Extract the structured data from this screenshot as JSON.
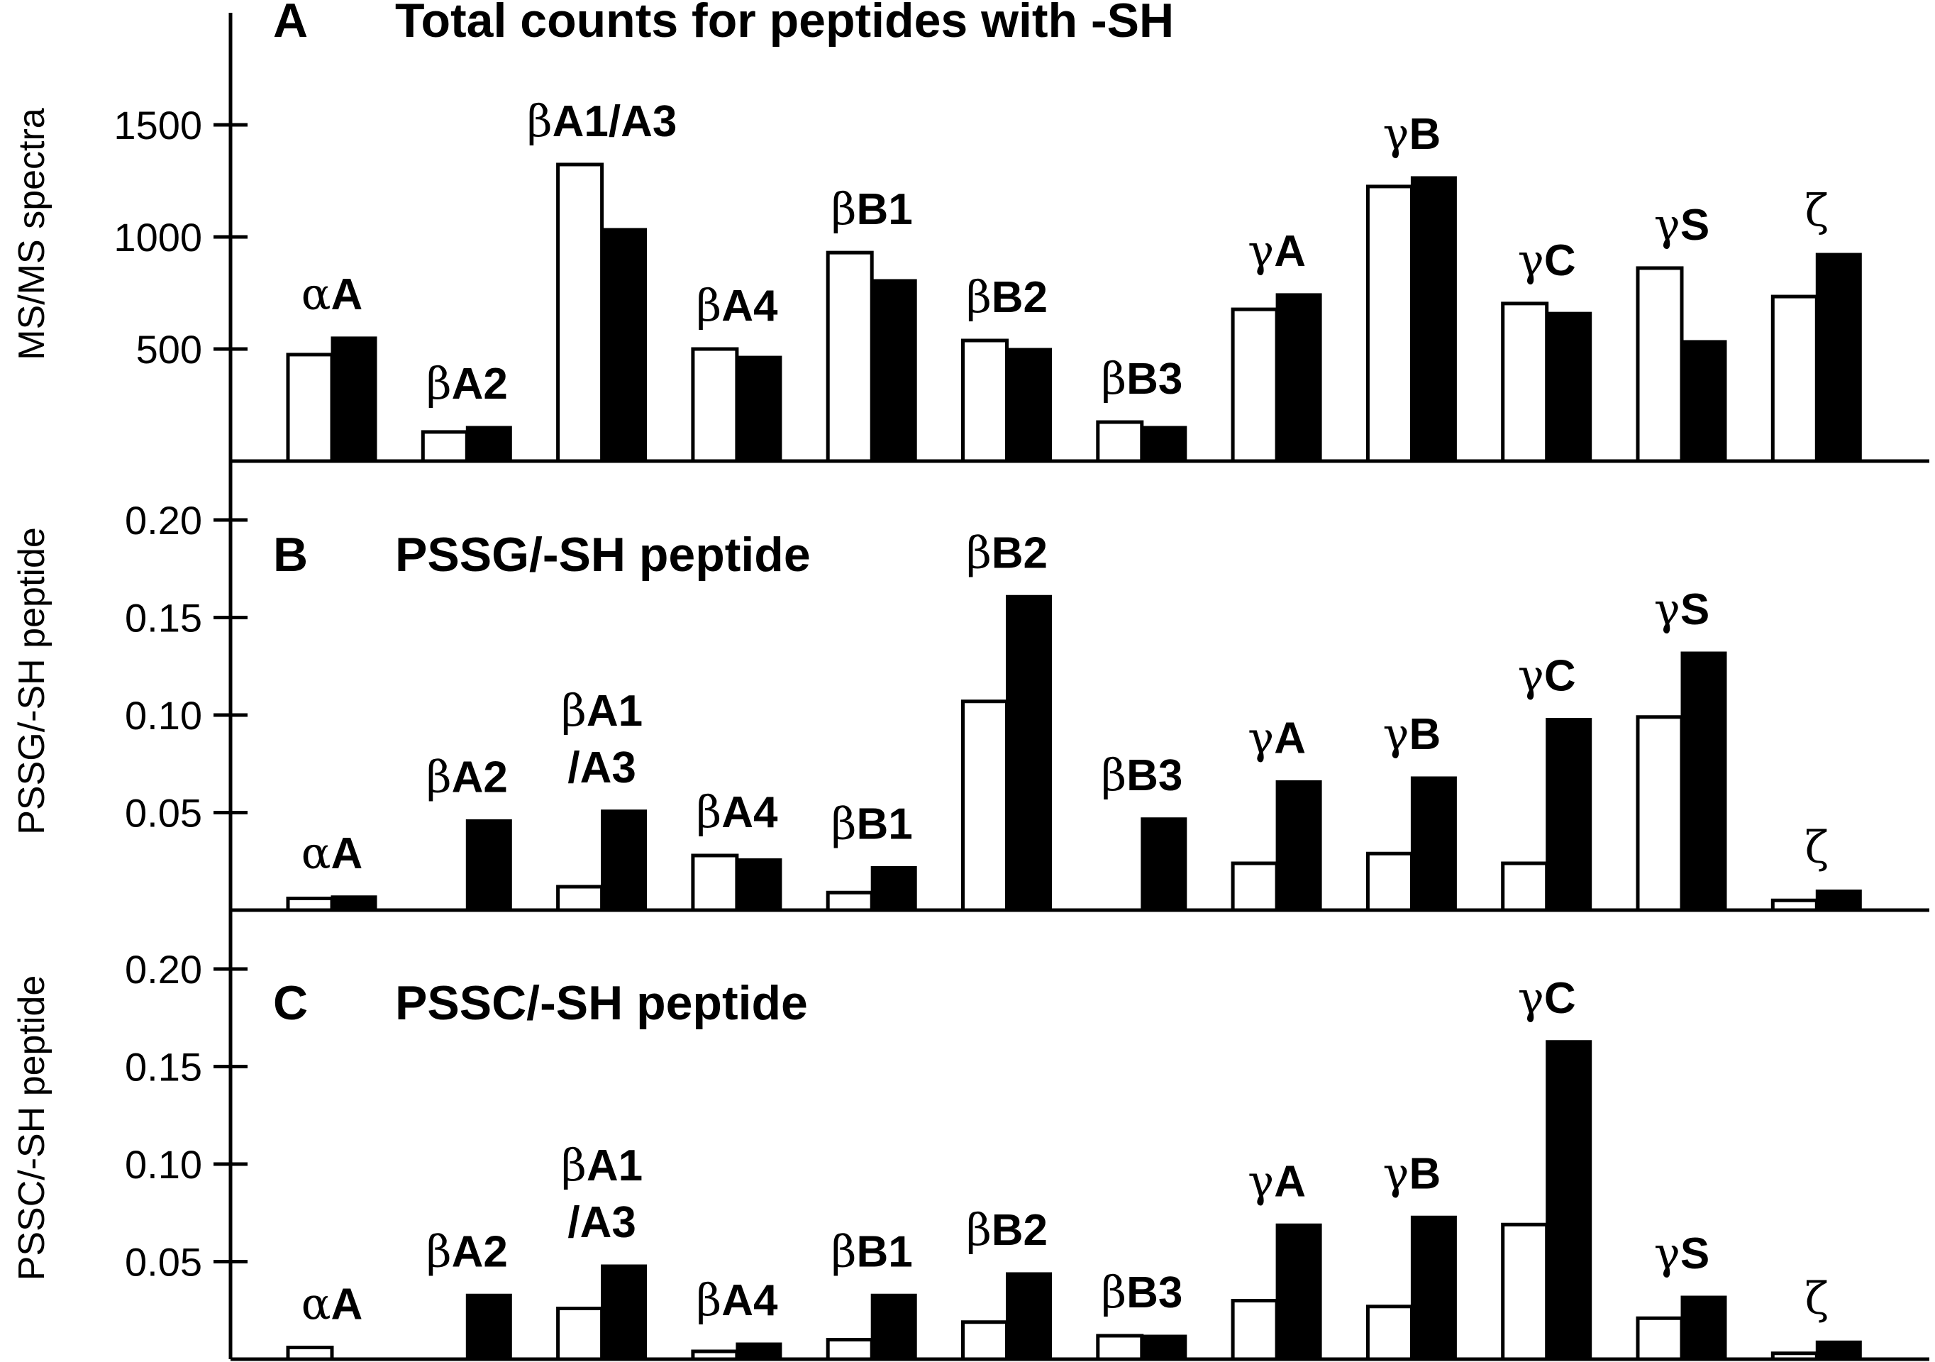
{
  "chart_data": {
    "type": "bar",
    "series_names": [
      "open bars",
      "filled bars"
    ],
    "series_colors": {
      "open": "#ffffff",
      "filled": "#000000"
    },
    "categories": [
      "αA",
      "βA2",
      "βA1/A3",
      "βA4",
      "βB1",
      "βB2",
      "βB3",
      "γA",
      "γB",
      "γC",
      "γS",
      "ζ"
    ],
    "panels": [
      {
        "letter": "A",
        "title": "Total counts for peptides with -SH",
        "ylabel": "MS/MS spectra",
        "ylim": [
          0,
          1800
        ],
        "yticks": [
          500,
          1000,
          1500
        ],
        "ytick_labels": [
          "500",
          "1000",
          "1500"
        ],
        "category_labels": [
          [
            "αA"
          ],
          [
            "βA2"
          ],
          [
            "βA1/A3"
          ],
          [
            "βA4"
          ],
          [
            "βB1"
          ],
          [
            "βB2"
          ],
          [
            "βB3"
          ],
          [
            "γA"
          ],
          [
            "γB"
          ],
          [
            "γC"
          ],
          [
            "γS"
          ],
          [
            "ζ"
          ]
        ],
        "series": [
          {
            "name": "open",
            "values": [
              475,
              130,
              1323,
              500,
              930,
              538,
              174,
              677,
              1225,
              703,
              861,
              734
            ]
          },
          {
            "name": "filled",
            "values": [
              551,
              152,
              1035,
              465,
              807,
              500,
              152,
              744,
              1266,
              661,
              535,
              924
            ]
          }
        ]
      },
      {
        "letter": "B",
        "title": "PSSG/-SH peptide",
        "ylabel": "PSSG/-SH peptide",
        "ylim": [
          0,
          0.23
        ],
        "yticks": [
          0.05,
          0.1,
          0.15,
          0.2
        ],
        "ytick_labels": [
          "0.05",
          "0.10",
          "0.15",
          "0.20"
        ],
        "category_labels": [
          [
            "αA"
          ],
          [
            "βA2"
          ],
          [
            "βA1",
            "/A3"
          ],
          [
            "βA4"
          ],
          [
            "βB1"
          ],
          [
            "βB2"
          ],
          [
            "βB3"
          ],
          [
            "γA"
          ],
          [
            "γB"
          ],
          [
            "γC"
          ],
          [
            "γS"
          ],
          [
            "ζ"
          ]
        ],
        "series": [
          {
            "name": "open",
            "values": [
              0.006,
              0,
              0.012,
              0.028,
              0.009,
              0.107,
              0,
              0.024,
              0.029,
              0.024,
              0.099,
              0.005
            ]
          },
          {
            "name": "filled",
            "values": [
              0.007,
              0.046,
              0.051,
              0.026,
              0.022,
              0.161,
              0.047,
              0.066,
              0.068,
              0.098,
              0.132,
              0.01
            ]
          }
        ]
      },
      {
        "letter": "C",
        "title": "PSSC/-SH peptide",
        "ylabel": "PSSC/-SH peptide",
        "ylim": [
          0,
          0.23
        ],
        "yticks": [
          0.05,
          0.1,
          0.15,
          0.2
        ],
        "ytick_labels": [
          "0.05",
          "0.10",
          "0.15",
          "0.20"
        ],
        "category_labels": [
          [
            "αA"
          ],
          [
            "βA2"
          ],
          [
            "βA1",
            "/A3"
          ],
          [
            "βA4"
          ],
          [
            "βB1"
          ],
          [
            "βB2"
          ],
          [
            "βB3"
          ],
          [
            "γA"
          ],
          [
            "γB"
          ],
          [
            "γC"
          ],
          [
            "γS"
          ],
          [
            "ζ"
          ]
        ],
        "series": [
          {
            "name": "open",
            "values": [
              0.006,
              0,
              0.026,
              0.004,
              0.01,
              0.019,
              0.012,
              0.03,
              0.027,
              0.069,
              0.021,
              0.003
            ]
          },
          {
            "name": "filled",
            "values": [
              0,
              0.033,
              0.048,
              0.008,
              0.033,
              0.044,
              0.012,
              0.069,
              0.073,
              0.163,
              0.032,
              0.009
            ]
          }
        ]
      }
    ]
  }
}
